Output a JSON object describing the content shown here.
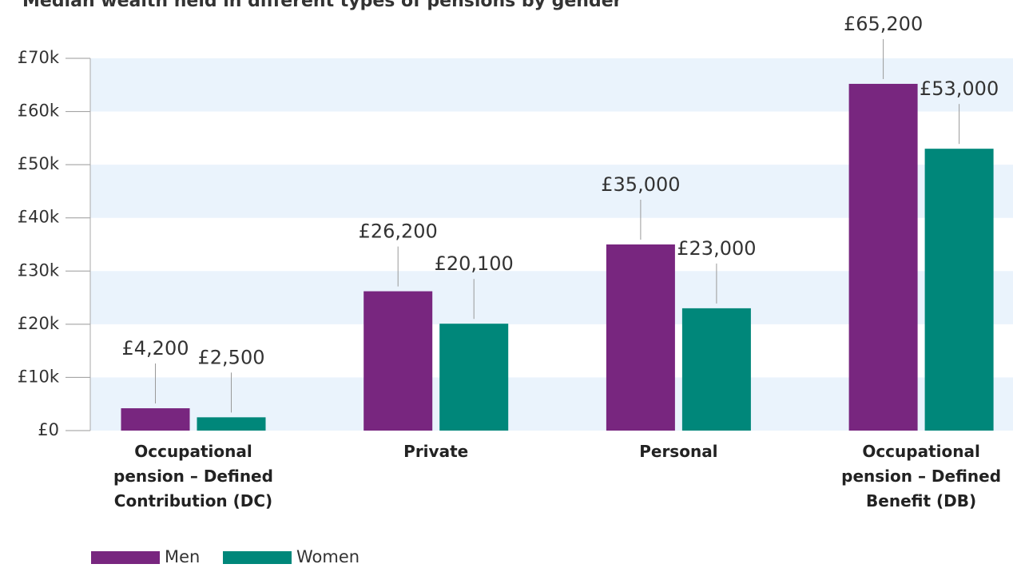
{
  "chart_data": {
    "type": "bar",
    "title": "Median wealth held in different types of pensions by gender",
    "categories": [
      "Occupational pension – Defined Contribution (DC)",
      "Private",
      "Personal",
      "Occupational pension – Defined Benefit (DB)"
    ],
    "series": [
      {
        "name": "Men",
        "color": "#78267f",
        "values": [
          4200,
          26200,
          35000,
          65200
        ],
        "value_labels": [
          "£4,200",
          "£26,200",
          "£35,000",
          "£65,200"
        ]
      },
      {
        "name": "Women",
        "color": "#00877a",
        "values": [
          2500,
          20100,
          23000,
          53000
        ],
        "value_labels": [
          "£2,500",
          "£20,100",
          "£23,000",
          "£53,000"
        ]
      }
    ],
    "ylim": [
      0,
      70000
    ],
    "yticks": [
      {
        "value": 0,
        "label": "£0"
      },
      {
        "value": 10000,
        "label": "£10k"
      },
      {
        "value": 20000,
        "label": "£20k"
      },
      {
        "value": 30000,
        "label": "£30k"
      },
      {
        "value": 40000,
        "label": "£40k"
      },
      {
        "value": 50000,
        "label": "£50k"
      },
      {
        "value": 60000,
        "label": "£60k"
      },
      {
        "value": 70000,
        "label": "£70k"
      }
    ],
    "grid": true,
    "legend": "bottom-left"
  }
}
